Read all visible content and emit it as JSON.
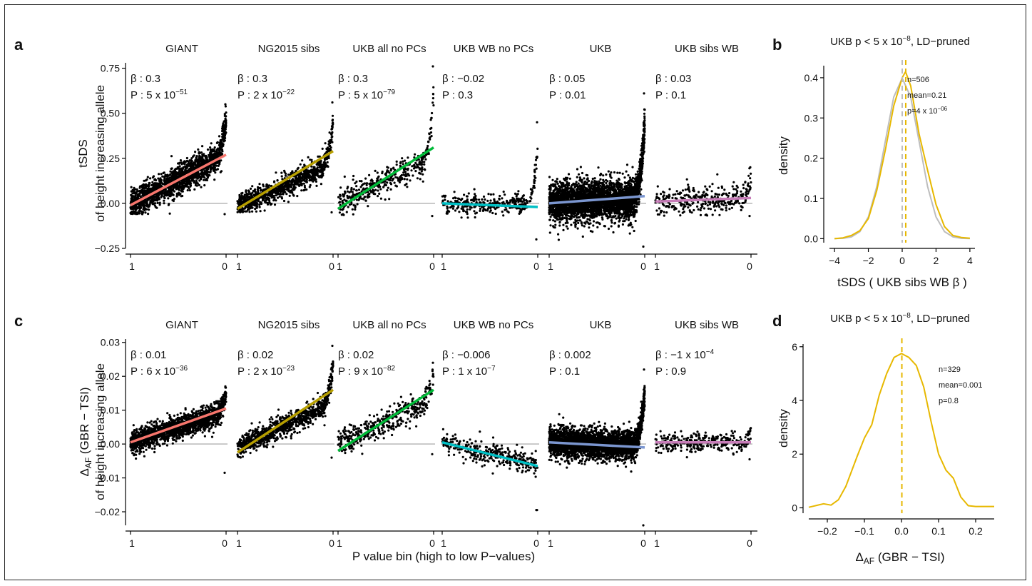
{
  "chart_data": [
    {
      "panel": "a",
      "type": "scatter",
      "ylabel": "tSDS",
      "ylabel2": "of height increasing allele",
      "xlabel": "",
      "ylim": [
        -0.25,
        0.78
      ],
      "yticks": [
        -0.25,
        0.0,
        0.25,
        0.5,
        0.75
      ],
      "ytick_labels": [
        "−0.25",
        "0.00",
        "0.25",
        "0.50",
        "0.75"
      ],
      "xtick_labels": [
        "1",
        "0"
      ],
      "xtick_labels_last": [
        "1",
        "0"
      ],
      "facets": [
        {
          "title": "GIANT",
          "color": "#F8766D",
          "beta": "0.3",
          "pval": "5 x 10",
          "pexp": "−51",
          "line": [
            -0.01,
            0.27
          ],
          "n": 1800,
          "base": [
            -0.01,
            0.27
          ],
          "noise": 0.05,
          "tail": 0.55,
          "minv": -0.06
        },
        {
          "title": "NG2015 sibs",
          "color": "#B79F00",
          "beta": "0.3",
          "pval": "2 x 10",
          "pexp": "−22",
          "line": [
            -0.03,
            0.29
          ],
          "n": 1000,
          "base": [
            -0.02,
            0.22
          ],
          "noise": 0.04,
          "tail": 0.56,
          "minv": -0.05
        },
        {
          "title": "UKB all no PCs",
          "color": "#00BA38",
          "beta": "0.3",
          "pval": "5 x 10",
          "pexp": "−79",
          "line": [
            -0.03,
            0.31
          ],
          "n": 420,
          "base": [
            0.0,
            0.25
          ],
          "noise": 0.05,
          "tail": 0.76,
          "minv": -0.07
        },
        {
          "title": "UKB WB no PCs",
          "color": "#00BFC4",
          "beta": "−0.02",
          "pval": "0.3",
          "pexp": "",
          "line": [
            0.0,
            -0.02
          ],
          "n": 330,
          "base": [
            0.0,
            -0.01
          ],
          "noise": 0.035,
          "tail": 0.45,
          "minv": -0.2
        },
        {
          "title": "UKB",
          "color": "#7B96D0",
          "beta": "0.05",
          "pval": "0.01",
          "pexp": "",
          "line": [
            0.0,
            0.04
          ],
          "n": 3600,
          "base": [
            0.0,
            0.03
          ],
          "noise": 0.065,
          "tail": 0.61,
          "minv": -0.24
        },
        {
          "title": "UKB sibs WB",
          "color": "#C77CB8",
          "beta": "0.03",
          "pval": "0.1",
          "pexp": "",
          "line": [
            0.01,
            0.03
          ],
          "n": 320,
          "base": [
            0.01,
            0.03
          ],
          "noise": 0.05,
          "tail": 0.2,
          "minv": -0.07
        }
      ]
    },
    {
      "panel": "b",
      "type": "line",
      "title": "UKB p < 5 x 10",
      "title_exp": "−8",
      "title_suffix": ", LD−pruned",
      "xlabel": "tSDS ( UKB sibs WB β )",
      "ylabel": "density",
      "xlim": [
        -4.3,
        4.3
      ],
      "ylim": [
        -0.01,
        0.43
      ],
      "xticks": [
        -4,
        -2,
        0,
        2,
        4
      ],
      "xtick_labels": [
        "−4",
        "−2",
        "0",
        "2",
        "4"
      ],
      "yticks": [
        0.0,
        0.1,
        0.2,
        0.3,
        0.4
      ],
      "ytick_labels": [
        "0.0",
        "0.1",
        "0.2",
        "0.3",
        "0.4"
      ],
      "annotation": {
        "n": "n=506",
        "mean": "mean=0.21",
        "p": "p=4 x 10",
        "p_exp": "−06"
      },
      "series": [
        {
          "color": "#bdbdbd",
          "mean_line": 0.0,
          "x": [
            -4,
            -3.5,
            -3,
            -2.5,
            -2,
            -1.5,
            -1,
            -0.5,
            0,
            0.5,
            1,
            1.5,
            2,
            2.5,
            3,
            3.5,
            4
          ],
          "y": [
            0.0001,
            0.0009,
            0.0044,
            0.0175,
            0.054,
            0.1295,
            0.242,
            0.352,
            0.3989,
            0.352,
            0.242,
            0.1295,
            0.054,
            0.0175,
            0.0044,
            0.0009,
            0.0001
          ]
        },
        {
          "color": "#E7B800",
          "mean_line": 0.21,
          "x": [
            -4,
            -3.5,
            -3,
            -2.5,
            -2,
            -1.5,
            -1,
            -0.5,
            0,
            0.2,
            0.5,
            1,
            1.5,
            2,
            2.5,
            3,
            3.5,
            4
          ],
          "y": [
            0.0,
            0.002,
            0.008,
            0.02,
            0.05,
            0.12,
            0.22,
            0.33,
            0.4,
            0.415,
            0.38,
            0.26,
            0.17,
            0.085,
            0.03,
            0.008,
            0.003,
            0.001
          ]
        }
      ]
    },
    {
      "panel": "c",
      "type": "scatter",
      "ylabel": "Δ",
      "ylabel_sub": "AF",
      "ylabel_suffix": " (GBR − TSI)",
      "ylabel2": "of height increasing allele",
      "xlabel": "P value bin (high to low P−values)",
      "ylim": [
        -0.024,
        0.031
      ],
      "yticks": [
        -0.02,
        -0.01,
        0.0,
        0.01,
        0.02,
        0.03
      ],
      "ytick_labels": [
        "−0.02",
        "−0.01",
        "0.00",
        "0.01",
        "0.02",
        "0.03"
      ],
      "xtick_labels": [
        "1",
        "0"
      ],
      "xtick_labels_last": [
        "1",
        "0"
      ],
      "facets": [
        {
          "title": "GIANT",
          "color": "#F8766D",
          "beta": "0.01",
          "pval": "6 x 10",
          "pexp": "−36",
          "line": [
            0.0005,
            0.0105
          ],
          "n": 1800,
          "base": [
            0.0005,
            0.0095
          ],
          "noise": 0.002,
          "tail": 0.017,
          "minv": -0.0085
        },
        {
          "title": "NG2015 sibs",
          "color": "#B79F00",
          "beta": "0.02",
          "pval": "2 x 10",
          "pexp": "−23",
          "line": [
            -0.0025,
            0.016
          ],
          "n": 1000,
          "base": [
            -0.001,
            0.012
          ],
          "noise": 0.002,
          "tail": 0.029,
          "minv": -0.004
        },
        {
          "title": "UKB all no PCs",
          "color": "#00BA38",
          "beta": "0.02",
          "pval": "9 x 10",
          "pexp": "−82",
          "line": [
            -0.002,
            0.016
          ],
          "n": 420,
          "base": [
            0.0,
            0.013
          ],
          "noise": 0.0025,
          "tail": 0.024,
          "minv": -0.003
        },
        {
          "title": "UKB WB no PCs",
          "color": "#00BFC4",
          "beta": "−0.006",
          "pval": "1 x 10",
          "pexp": "−7",
          "line": [
            0.0005,
            -0.0065
          ],
          "n": 330,
          "base": [
            0.0005,
            -0.006
          ],
          "noise": 0.002,
          "tail": -0.0195,
          "minv": -0.0195
        },
        {
          "title": "UKB",
          "color": "#7B96D0",
          "beta": "0.002",
          "pval": "0.1",
          "pexp": "",
          "line": [
            0.0005,
            -0.001
          ],
          "n": 3600,
          "base": [
            0.0005,
            -0.0005
          ],
          "noise": 0.0025,
          "tail": 0.022,
          "minv": -0.024
        },
        {
          "title": "UKB sibs WB",
          "color": "#C77CB8",
          "beta": "−1 x 10",
          "pval": "0.9",
          "pexp": "",
          "bexp": "−4",
          "line": [
            0.0005,
            0.0005
          ],
          "n": 320,
          "base": [
            0.0005,
            0.0005
          ],
          "noise": 0.0018,
          "tail": 0.0045,
          "minv": -0.0045
        }
      ]
    },
    {
      "panel": "d",
      "type": "line",
      "title": "UKB p < 5 x 10",
      "title_exp": "−8",
      "title_suffix": ", LD−pruned",
      "xlabel": "Δ",
      "xlabel_sub": "AF",
      "xlabel_suffix": " (GBR − TSI)",
      "ylabel": "density",
      "xlim": [
        -0.25,
        0.25
      ],
      "ylim": [
        -0.2,
        6.1
      ],
      "xticks": [
        -0.2,
        -0.1,
        0.0,
        0.1,
        0.2
      ],
      "xtick_labels": [
        "−0.2",
        "−0.1",
        "0.0",
        "0.1",
        "0.2"
      ],
      "yticks": [
        0,
        2,
        4,
        6
      ],
      "ytick_labels": [
        "0",
        "2",
        "4",
        "6"
      ],
      "annotation": {
        "n": "n=329",
        "mean": "mean=0.001",
        "p": "p=0.8",
        "p_exp": ""
      },
      "series": [
        {
          "color": "#E7B800",
          "mean_line": 0.001,
          "x": [
            -0.25,
            -0.21,
            -0.19,
            -0.17,
            -0.15,
            -0.12,
            -0.1,
            -0.08,
            -0.06,
            -0.04,
            -0.02,
            0.0,
            0.02,
            0.04,
            0.06,
            0.08,
            0.1,
            0.12,
            0.14,
            0.16,
            0.18,
            0.2,
            0.25
          ],
          "y": [
            0.02,
            0.15,
            0.1,
            0.3,
            0.8,
            1.9,
            2.6,
            3.1,
            4.2,
            5.0,
            5.6,
            5.75,
            5.6,
            5.3,
            4.5,
            3.2,
            2.0,
            1.4,
            1.1,
            0.4,
            0.08,
            0.05,
            0.05
          ]
        }
      ]
    }
  ]
}
